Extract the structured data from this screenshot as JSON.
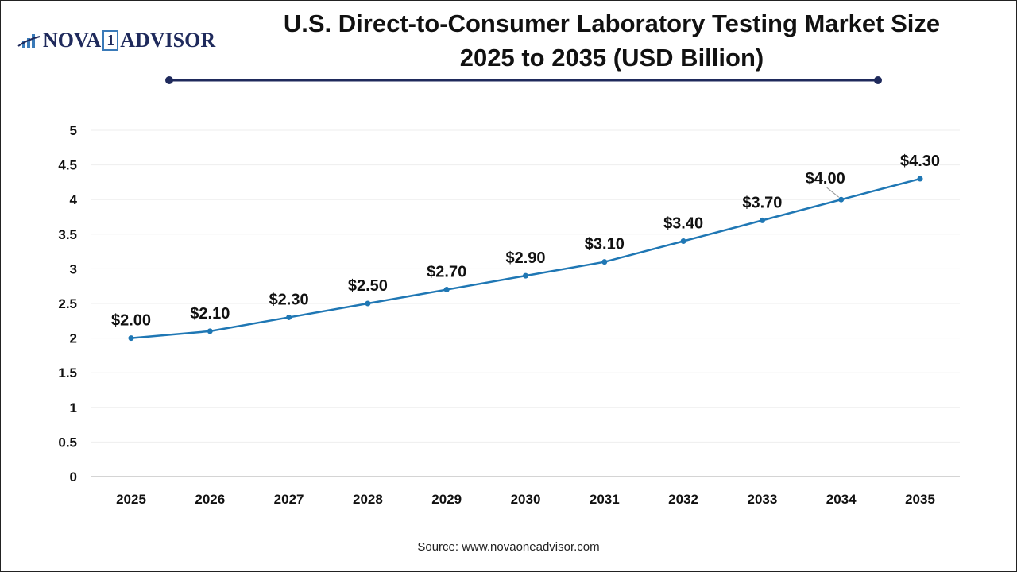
{
  "logo": {
    "text_left": "NOVA",
    "text_mid": "1",
    "text_right": "ADVISOR"
  },
  "title": "U.S. Direct-to-Consumer Laboratory Testing Market Size 2025 to 2035 (USD Billion)",
  "source": "Source: www.novaoneadvisor.com",
  "colors": {
    "line": "#1f77b4",
    "title_rule": "#1f2a5c"
  },
  "chart_data": {
    "type": "line",
    "title": "U.S. Direct-to-Consumer Laboratory Testing Market Size 2025 to 2035 (USD Billion)",
    "categories": [
      "2025",
      "2026",
      "2027",
      "2028",
      "2029",
      "2030",
      "2031",
      "2032",
      "2033",
      "2034",
      "2035"
    ],
    "values": [
      2.0,
      2.1,
      2.3,
      2.5,
      2.7,
      2.9,
      3.1,
      3.4,
      3.7,
      4.0,
      4.3
    ],
    "labels": [
      "$2.00",
      "$2.10",
      "$2.30",
      "$2.50",
      "$2.70",
      "$2.90",
      "$3.10",
      "$3.40",
      "$3.70",
      "$4.00",
      "$4.30"
    ],
    "yticks": [
      "0",
      "0.5",
      "1",
      "1.5",
      "2",
      "2.5",
      "3",
      "3.5",
      "4",
      "4.5",
      "5"
    ],
    "ylim": [
      0,
      5
    ],
    "grid": true,
    "legend": "none"
  }
}
